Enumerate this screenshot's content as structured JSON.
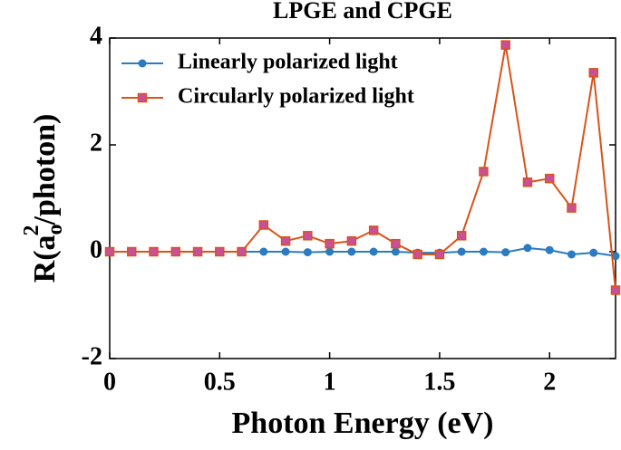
{
  "chart_data": {
    "type": "line",
    "title": "LPGE and CPGE",
    "xlabel": "Photon Energy (eV)",
    "ylabel": {
      "base": "R(a",
      "subscript": "o",
      "superscript": "2",
      "rest": "/photon)"
    },
    "x": [
      0,
      0.1,
      0.2,
      0.3,
      0.4,
      0.5,
      0.6,
      0.7,
      0.8,
      0.9,
      1.0,
      1.1,
      1.2,
      1.3,
      1.4,
      1.5,
      1.6,
      1.7,
      1.8,
      1.9,
      2.0,
      2.1,
      2.2,
      2.3
    ],
    "series": [
      {
        "name": "Linearly polarized light",
        "color": "#2a7bbf",
        "marker": "circle",
        "marker_color": "#2a7bbf",
        "values": [
          0,
          0,
          0,
          0,
          0,
          0,
          0,
          0,
          0,
          -0.01,
          0,
          0,
          0,
          0,
          -0.02,
          -0.02,
          0,
          0,
          -0.01,
          0.07,
          0.03,
          -0.05,
          -0.02,
          -0.08
        ]
      },
      {
        "name": "Circularly polarized light",
        "color": "#d95319",
        "marker": "square",
        "marker_color": "#c8509a",
        "values": [
          0,
          0,
          0,
          0,
          0,
          0,
          0,
          0.5,
          0.2,
          0.3,
          0.15,
          0.2,
          0.4,
          0.15,
          -0.05,
          -0.05,
          0.3,
          1.5,
          3.87,
          1.3,
          1.37,
          0.82,
          3.35,
          -0.72
        ]
      }
    ],
    "xlim": [
      0,
      2.3
    ],
    "ylim": [
      -2,
      4
    ],
    "xticks": [
      0,
      0.5,
      1,
      1.5,
      2
    ],
    "yticks": [
      -2,
      0,
      2,
      4
    ],
    "legend": "upper left",
    "grid": false
  }
}
